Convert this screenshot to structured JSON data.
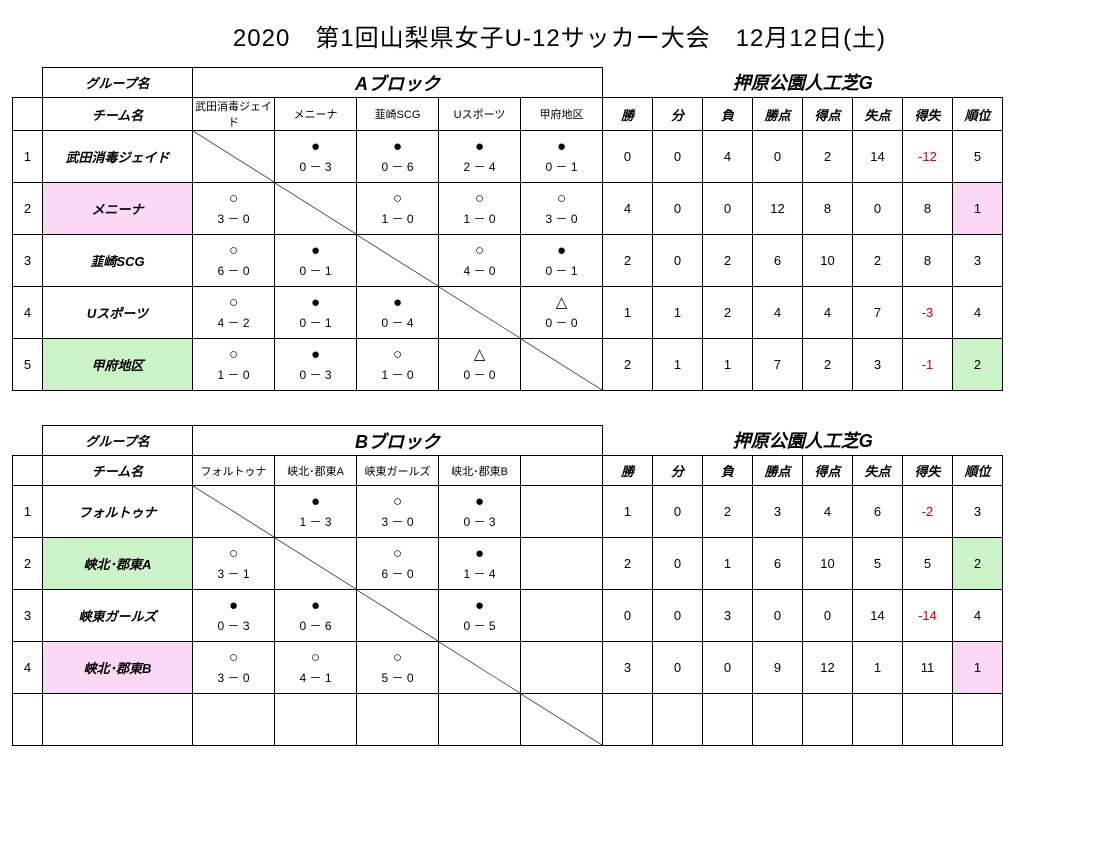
{
  "title": "2020　第1回山梨県女子U-12サッカー大会　12月12日(土)",
  "labels": {
    "group": "グループ名",
    "team": "チーム名"
  },
  "stat_headers": [
    "勝",
    "分",
    "負",
    "勝点",
    "得点",
    "失点",
    "得失",
    "順位"
  ],
  "blocks": [
    {
      "name": "Aブロック",
      "venue": "押原公園人工芝G",
      "opp_cols": 5,
      "opponents": [
        "武田消毒ジェイド",
        "メニーナ",
        "韮崎SCG",
        "Uスポーツ",
        "甲府地区"
      ],
      "rows": [
        {
          "n": 1,
          "team": "武田消毒ジェイド",
          "team_bg": "",
          "results": [
            null,
            {
              "m": "●",
              "s": "0 － 3"
            },
            {
              "m": "●",
              "s": "0 － 6"
            },
            {
              "m": "●",
              "s": "2 － 4"
            },
            {
              "m": "●",
              "s": "0 － 1"
            }
          ],
          "stats": [
            0,
            0,
            4,
            0,
            2,
            14,
            -12,
            5
          ],
          "rank_bg": ""
        },
        {
          "n": 2,
          "team": "メニーナ",
          "team_bg": "bg-pink",
          "results": [
            {
              "m": "○",
              "s": "3 － 0"
            },
            null,
            {
              "m": "○",
              "s": "1 － 0"
            },
            {
              "m": "○",
              "s": "1 － 0"
            },
            {
              "m": "○",
              "s": "3 － 0"
            }
          ],
          "stats": [
            4,
            0,
            0,
            12,
            8,
            0,
            8,
            1
          ],
          "rank_bg": "bg-pink"
        },
        {
          "n": 3,
          "team": "韮崎SCG",
          "team_bg": "",
          "results": [
            {
              "m": "○",
              "s": "6 － 0"
            },
            {
              "m": "●",
              "s": "0 － 1"
            },
            null,
            {
              "m": "○",
              "s": "4 － 0"
            },
            {
              "m": "●",
              "s": "0 － 1"
            }
          ],
          "stats": [
            2,
            0,
            2,
            6,
            10,
            2,
            8,
            3
          ],
          "rank_bg": ""
        },
        {
          "n": 4,
          "team": "Uスポーツ",
          "team_bg": "",
          "results": [
            {
              "m": "○",
              "s": "4 － 2"
            },
            {
              "m": "●",
              "s": "0 － 1"
            },
            {
              "m": "●",
              "s": "0 － 4"
            },
            null,
            {
              "m": "△",
              "s": "0 － 0"
            }
          ],
          "stats": [
            1,
            1,
            2,
            4,
            4,
            7,
            -3,
            4
          ],
          "rank_bg": ""
        },
        {
          "n": 5,
          "team": "甲府地区",
          "team_bg": "bg-green",
          "results": [
            {
              "m": "○",
              "s": "1 － 0"
            },
            {
              "m": "●",
              "s": "0 － 3"
            },
            {
              "m": "○",
              "s": "1 － 0"
            },
            {
              "m": "△",
              "s": "0 － 0"
            },
            null
          ],
          "stats": [
            2,
            1,
            1,
            7,
            2,
            3,
            -1,
            2
          ],
          "rank_bg": "bg-green"
        }
      ]
    },
    {
      "name": "Bブロック",
      "venue": "押原公園人工芝G",
      "opp_cols": 5,
      "opponents": [
        "フォルトゥナ",
        "峡北･郡東A",
        "峡東ガールズ",
        "峡北･郡東B",
        ""
      ],
      "rows": [
        {
          "n": 1,
          "team": "フォルトゥナ",
          "team_bg": "",
          "results": [
            null,
            {
              "m": "●",
              "s": "1 － 3"
            },
            {
              "m": "○",
              "s": "3 － 0"
            },
            {
              "m": "●",
              "s": "0 － 3"
            },
            {
              "blank": true
            }
          ],
          "stats": [
            1,
            0,
            2,
            3,
            4,
            6,
            -2,
            3
          ],
          "rank_bg": ""
        },
        {
          "n": 2,
          "team": "峡北･郡東A",
          "team_bg": "bg-green",
          "results": [
            {
              "m": "○",
              "s": "3 － 1"
            },
            null,
            {
              "m": "○",
              "s": "6 － 0"
            },
            {
              "m": "●",
              "s": "1 － 4"
            },
            {
              "blank": true
            }
          ],
          "stats": [
            2,
            0,
            1,
            6,
            10,
            5,
            5,
            2
          ],
          "rank_bg": "bg-green"
        },
        {
          "n": 3,
          "team": "峡東ガールズ",
          "team_bg": "",
          "results": [
            {
              "m": "●",
              "s": "0 － 3"
            },
            {
              "m": "●",
              "s": "0 － 6"
            },
            null,
            {
              "m": "●",
              "s": "0 － 5"
            },
            {
              "blank": true
            }
          ],
          "stats": [
            0,
            0,
            3,
            0,
            0,
            14,
            -14,
            4
          ],
          "rank_bg": ""
        },
        {
          "n": 4,
          "team": "峡北･郡東B",
          "team_bg": "bg-pink",
          "results": [
            {
              "m": "○",
              "s": "3 － 0"
            },
            {
              "m": "○",
              "s": "4 － 1"
            },
            {
              "m": "○",
              "s": "5 － 0"
            },
            null,
            {
              "blank": true
            }
          ],
          "stats": [
            3,
            0,
            0,
            9,
            12,
            1,
            11,
            1
          ],
          "rank_bg": "bg-pink"
        },
        {
          "n": "",
          "team": "",
          "team_bg": "",
          "results": [
            {
              "blank": true
            },
            {
              "blank": true
            },
            {
              "blank": true
            },
            {
              "blank": true
            },
            null
          ],
          "stats": [
            "",
            "",
            "",
            "",
            "",
            "",
            "",
            ""
          ],
          "rank_bg": ""
        }
      ]
    }
  ]
}
